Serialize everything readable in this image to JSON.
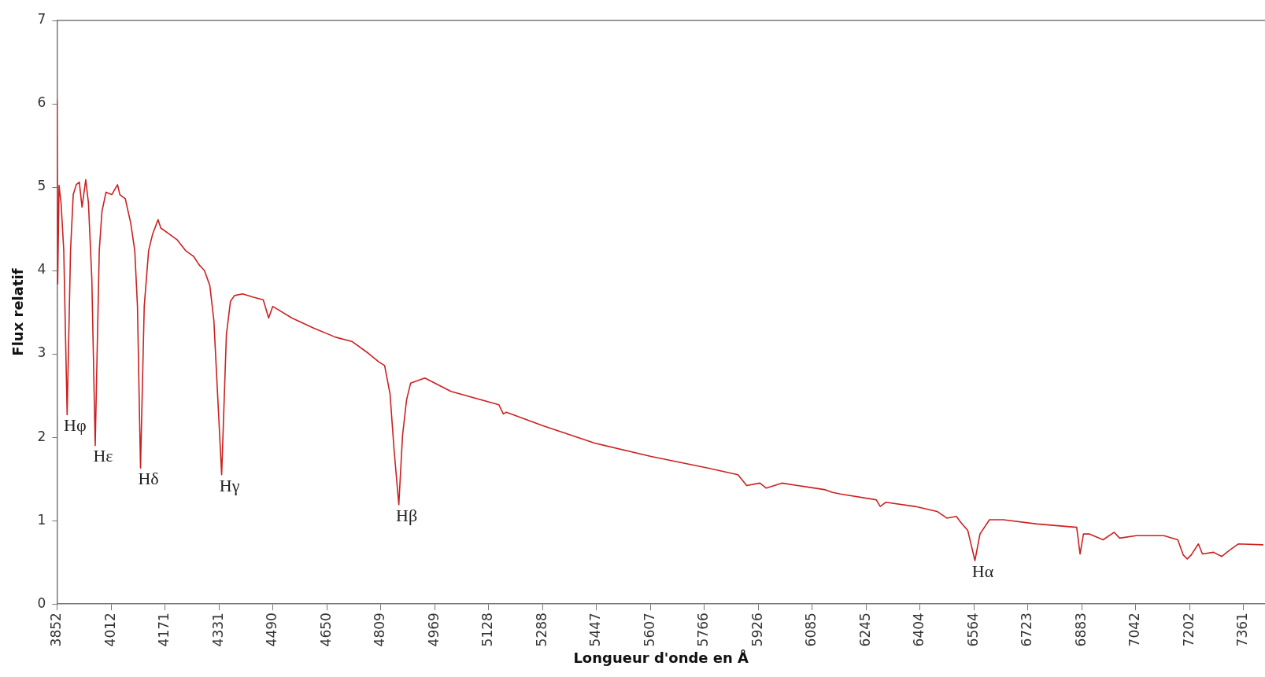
{
  "chart_data": {
    "type": "line",
    "xlabel": "Longueur d'onde en Å",
    "ylabel": "Flux relatif",
    "xlim": [
      3852,
      7425
    ],
    "ylim": [
      0,
      7
    ],
    "xticks": [
      3852,
      4012,
      4171,
      4331,
      4490,
      4650,
      4809,
      4969,
      5128,
      5288,
      5447,
      5607,
      5766,
      5926,
      6085,
      6245,
      6404,
      6564,
      6723,
      6883,
      7042,
      7202,
      7361
    ],
    "yticks": [
      0,
      1,
      2,
      3,
      4,
      5,
      6,
      7
    ],
    "grid": false,
    "legend": false,
    "marker": "none",
    "line_style": "solid",
    "series": [
      {
        "color": "#cc2020",
        "x": [
          3852,
          3854,
          3858,
          3864,
          3872,
          3882,
          3892,
          3900,
          3909,
          3918,
          3926,
          3937,
          3945,
          3955,
          3965,
          3977,
          3985,
          3997,
          4014,
          4031,
          4038,
          4054,
          4070,
          4082,
          4090,
          4099,
          4110,
          4123,
          4135,
          4151,
          4159,
          4183,
          4207,
          4232,
          4256,
          4272,
          4288,
          4304,
          4316,
          4339,
          4353,
          4365,
          4377,
          4401,
          4433,
          4462,
          4478,
          4490,
          4547,
          4611,
          4676,
          4724,
          4772,
          4805,
          4821,
          4837,
          4849,
          4863,
          4874,
          4886,
          4898,
          4940,
          5017,
          5159,
          5172,
          5181,
          5288,
          5442,
          5609,
          5777,
          5866,
          5892,
          5931,
          5950,
          5996,
          6125,
          6144,
          6169,
          6275,
          6287,
          6303,
          6390,
          6455,
          6484,
          6512,
          6525,
          6546,
          6567,
          6582,
          6610,
          6651,
          6751,
          6868,
          6878,
          6888,
          6905,
          6946,
          6979,
          6995,
          7044,
          7126,
          7167,
          7183,
          7195,
          7207,
          7228,
          7240,
          7273,
          7297,
          7322,
          7346,
          7420
        ],
        "values": [
          6.05,
          3.84,
          5.02,
          4.81,
          4.24,
          2.27,
          4.24,
          4.91,
          5.03,
          5.06,
          4.76,
          5.09,
          4.81,
          3.9,
          1.9,
          4.24,
          4.71,
          4.94,
          4.91,
          5.03,
          4.91,
          4.86,
          4.57,
          4.24,
          3.57,
          1.63,
          3.57,
          4.24,
          4.44,
          4.61,
          4.51,
          4.44,
          4.37,
          4.24,
          4.17,
          4.07,
          4.0,
          3.82,
          3.4,
          1.55,
          3.23,
          3.63,
          3.7,
          3.72,
          3.68,
          3.65,
          3.43,
          3.57,
          3.43,
          3.31,
          3.2,
          3.15,
          3.01,
          2.9,
          2.86,
          2.52,
          1.85,
          1.19,
          2.02,
          2.45,
          2.65,
          2.71,
          2.55,
          2.39,
          2.28,
          2.3,
          2.14,
          1.93,
          1.77,
          1.63,
          1.55,
          1.42,
          1.45,
          1.39,
          1.45,
          1.37,
          1.34,
          1.32,
          1.25,
          1.17,
          1.22,
          1.17,
          1.11,
          1.03,
          1.05,
          0.98,
          0.88,
          0.52,
          0.84,
          1.01,
          1.01,
          0.96,
          0.92,
          0.6,
          0.84,
          0.84,
          0.77,
          0.86,
          0.79,
          0.82,
          0.82,
          0.77,
          0.59,
          0.54,
          0.59,
          0.72,
          0.6,
          0.62,
          0.57,
          0.65,
          0.72,
          0.71
        ]
      }
    ],
    "annotations": [
      {
        "text": "Hφ",
        "x": 3882,
        "y": 2.27
      },
      {
        "text": "Hε",
        "x": 3965,
        "y": 1.9
      },
      {
        "text": "Hδ",
        "x": 4099,
        "y": 1.63
      },
      {
        "text": "Hγ",
        "x": 4339,
        "y": 1.55
      },
      {
        "text": "Hβ",
        "x": 4863,
        "y": 1.19
      },
      {
        "text": "Hα",
        "x": 6567,
        "y": 0.52
      }
    ]
  }
}
